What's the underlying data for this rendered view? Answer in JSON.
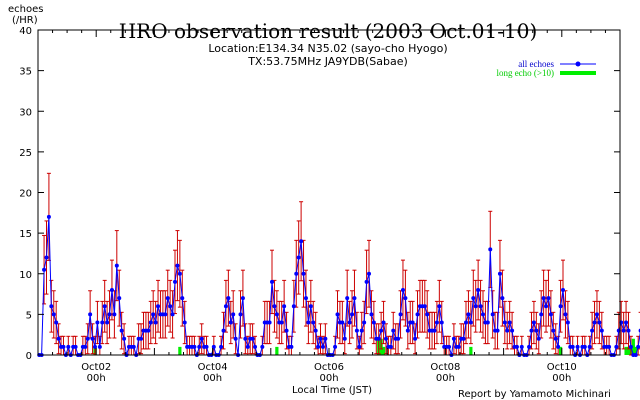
{
  "chart_data": {
    "type": "line",
    "title": "HRO observation result (2003 Oct.01-10)",
    "subtitle_lines": [
      "Location:E134.34 N35.02 (sayo-cho Hyogo)",
      "TX:53.75MHz JA9YDB(Sabae)"
    ],
    "ylabel_lines": [
      "echoes",
      "(/HR)"
    ],
    "xlabel": "Local Time (JST)",
    "credit": "Report by Yamamoto Michinari",
    "ylim": [
      0,
      40
    ],
    "yticks": [
      0,
      5,
      10,
      15,
      20,
      25,
      30,
      35,
      40
    ],
    "xlim_hours": [
      0,
      240
    ],
    "xticks": [
      {
        "hour": 24,
        "label": "Oct02",
        "sub": "00h"
      },
      {
        "hour": 72,
        "label": "Oct04",
        "sub": "00h"
      },
      {
        "hour": 120,
        "label": "Oct06",
        "sub": "00h"
      },
      {
        "hour": 168,
        "label": "Oct08",
        "sub": "00h"
      },
      {
        "hour": 216,
        "label": "Oct10",
        "sub": "00h"
      }
    ],
    "grid": false,
    "legend_position": "top-right",
    "colors": {
      "all_echoes": "#0000ff",
      "error_bars": "#cc0000",
      "long_echo": "#00ee00"
    },
    "series": [
      {
        "name": "all echoes",
        "values": [
          0,
          0,
          10.5,
          12,
          17,
          6,
          5,
          4,
          2,
          1,
          1,
          0,
          1,
          0,
          1,
          1,
          0,
          0,
          1,
          1,
          2,
          5,
          2,
          1,
          4,
          1,
          4,
          6,
          4,
          5,
          8,
          5,
          11,
          7,
          3,
          2,
          0,
          1,
          1,
          1,
          0,
          2,
          2,
          3,
          3,
          3,
          4,
          5,
          4,
          6,
          5,
          5,
          5,
          7,
          6,
          5,
          9,
          11,
          10,
          7,
          4,
          1,
          1,
          1,
          1,
          0,
          1,
          2,
          1,
          1,
          0,
          0,
          1,
          0,
          0,
          1,
          3,
          6,
          7,
          4,
          5,
          2,
          0,
          5,
          7,
          2,
          1,
          2,
          2,
          1,
          0,
          0,
          1,
          4,
          4,
          4,
          9,
          6,
          5,
          4,
          4,
          6,
          3,
          1,
          1,
          6,
          10,
          12,
          14,
          10,
          7,
          4,
          6,
          4,
          3,
          1,
          2,
          1,
          2,
          0,
          0,
          0,
          1,
          5,
          4,
          4,
          2,
          7,
          4,
          5,
          7,
          3,
          1,
          3,
          4,
          9,
          10,
          5,
          4,
          2,
          2,
          3,
          4,
          2,
          1,
          1,
          3,
          2,
          2,
          5,
          8,
          7,
          3,
          4,
          4,
          2,
          5,
          6,
          6,
          6,
          5,
          3,
          3,
          3,
          4,
          6,
          4,
          1,
          1,
          1,
          0,
          2,
          1,
          1,
          2,
          2,
          4,
          5,
          4,
          7,
          6,
          8,
          6,
          5,
          4,
          4,
          13,
          5,
          3,
          3,
          10,
          7,
          4,
          3,
          4,
          3,
          1,
          1,
          0,
          1,
          0,
          0,
          1,
          3,
          4,
          3,
          2,
          5,
          7,
          6,
          7,
          5,
          3,
          2,
          1,
          6,
          8,
          5,
          4,
          1,
          1,
          0,
          1,
          0,
          1,
          1,
          0,
          1,
          3,
          4,
          5,
          4,
          3,
          1,
          1,
          1,
          0,
          0,
          1,
          3,
          4,
          3,
          4,
          3,
          1,
          0,
          0,
          1,
          3,
          4,
          6,
          4,
          0,
          0,
          0,
          0,
          0,
          0,
          4,
          5,
          6,
          5,
          4,
          2,
          2,
          1
        ]
      },
      {
        "name": "long echo (>10)",
        "values": [
          0,
          0,
          0,
          0,
          0,
          0,
          0,
          0,
          0,
          0,
          0,
          0,
          0,
          0,
          0,
          0,
          0,
          0,
          0,
          0,
          0,
          0,
          0,
          1,
          0,
          0,
          0,
          0,
          0,
          0,
          0,
          0,
          0,
          0,
          0,
          0,
          0,
          0,
          0,
          0,
          0,
          0,
          0,
          0,
          0,
          0,
          0,
          0,
          0,
          0,
          0,
          0,
          0,
          0,
          0,
          0,
          0,
          0,
          1,
          0,
          0,
          0,
          0,
          0,
          0,
          0,
          0,
          0,
          0,
          0,
          0,
          0,
          0,
          0,
          0,
          0,
          0,
          0,
          0,
          0,
          0,
          0,
          0,
          0,
          0,
          0,
          0,
          0,
          0,
          0,
          0,
          0,
          0,
          0,
          0,
          0,
          0,
          0,
          1,
          0,
          0,
          0,
          0,
          0,
          0,
          0,
          0,
          0,
          0,
          0,
          0,
          0,
          0,
          0,
          0,
          0,
          0,
          0,
          0,
          0,
          0,
          0,
          0,
          0,
          0,
          0,
          0,
          0,
          0,
          0,
          0,
          0,
          0,
          0,
          0,
          0,
          0,
          0,
          0,
          0,
          2,
          2,
          1,
          0,
          0,
          0,
          0,
          0,
          0,
          0,
          0,
          0,
          0,
          0,
          0,
          0,
          0,
          0,
          0,
          0,
          0,
          0,
          0,
          0,
          0,
          0,
          0,
          0,
          0,
          0,
          0,
          0,
          0,
          0,
          0,
          0,
          0,
          0,
          1,
          0,
          0,
          0,
          0,
          0,
          0,
          0,
          0,
          0,
          0,
          0,
          0,
          0,
          0,
          0,
          0,
          0,
          0,
          0,
          0,
          0,
          0,
          0,
          0,
          0,
          0,
          0,
          0,
          0,
          0,
          0,
          0,
          0,
          0,
          0,
          0,
          1,
          0,
          0,
          0,
          0,
          0,
          0,
          0,
          0,
          0,
          0,
          0,
          0,
          0,
          0,
          0,
          0,
          0,
          0,
          0,
          0,
          0,
          0,
          0,
          0,
          0,
          0,
          1,
          1,
          1,
          2,
          1,
          0,
          0,
          0,
          0,
          0,
          0,
          0,
          0,
          0,
          0,
          0,
          1,
          1,
          0,
          0,
          0,
          0,
          0,
          0,
          0,
          0,
          0,
          0,
          0,
          0,
          0,
          0,
          0,
          0,
          0,
          0,
          1,
          0,
          0,
          0,
          0,
          0,
          0,
          0,
          0,
          0,
          0,
          0,
          0,
          0,
          0,
          0,
          0,
          0
        ]
      }
    ]
  }
}
